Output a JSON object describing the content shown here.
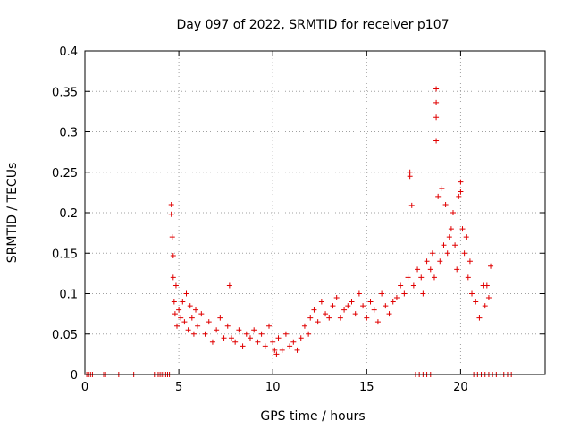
{
  "chart_data": {
    "type": "scatter",
    "title": "Day 097 of 2022, SRMTID for receiver p107",
    "xlabel": "GPS time / hours",
    "ylabel": "SRMTID / TECUs",
    "xlim": [
      0,
      24.5
    ],
    "ylim": [
      0,
      0.4
    ],
    "xticks": [
      0,
      5,
      10,
      15,
      20
    ],
    "xtick_labels": [
      "0",
      "5",
      "10",
      "15",
      "20"
    ],
    "yticks": [
      0,
      0.05,
      0.1,
      0.15,
      0.2,
      0.25,
      0.3,
      0.35,
      0.4
    ],
    "ytick_labels": [
      "0",
      "0.05",
      "0.1",
      "0.15",
      "0.2",
      "0.25",
      "0.3",
      "0.35",
      "0.4"
    ],
    "grid": true,
    "marker": "plus",
    "series": [
      {
        "name": "SRMTID",
        "color": "#e00000",
        "x": [
          0.1,
          0.2,
          0.3,
          0.4,
          1.0,
          1.1,
          1.8,
          2.6,
          3.7,
          3.9,
          4.0,
          4.1,
          4.2,
          4.3,
          4.4,
          4.5,
          4.6,
          4.6,
          4.65,
          4.7,
          4.7,
          4.75,
          4.8,
          4.85,
          4.9,
          5.0,
          5.1,
          5.2,
          5.3,
          5.4,
          5.5,
          5.6,
          5.7,
          5.8,
          5.9,
          6.0,
          6.2,
          6.4,
          6.6,
          6.8,
          7.0,
          7.2,
          7.4,
          7.6,
          7.7,
          7.8,
          8.0,
          8.2,
          8.4,
          8.6,
          8.8,
          9.0,
          9.2,
          9.4,
          9.6,
          9.8,
          10.0,
          10.1,
          10.2,
          10.3,
          10.5,
          10.7,
          10.9,
          11.1,
          11.3,
          11.5,
          11.7,
          11.9,
          12.0,
          12.2,
          12.4,
          12.6,
          12.8,
          13.0,
          13.2,
          13.4,
          13.6,
          13.8,
          14.0,
          14.2,
          14.4,
          14.6,
          14.8,
          15.0,
          15.2,
          15.4,
          15.6,
          15.8,
          16.0,
          16.2,
          16.4,
          16.6,
          16.8,
          17.0,
          17.2,
          17.3,
          17.3,
          17.4,
          17.5,
          17.7,
          17.9,
          18.0,
          18.2,
          18.4,
          18.5,
          18.6,
          18.7,
          18.7,
          18.7,
          18.7,
          18.8,
          18.9,
          19.0,
          19.1,
          19.2,
          19.3,
          19.4,
          19.5,
          19.6,
          19.7,
          19.8,
          19.9,
          20.0,
          20.0,
          20.1,
          20.2,
          20.3,
          20.4,
          20.5,
          20.6,
          17.6,
          17.8,
          18.0,
          18.2,
          18.4,
          20.8,
          21.0,
          21.2,
          21.3,
          21.4,
          21.5,
          21.6,
          20.7,
          20.9,
          21.1,
          21.3,
          21.5,
          21.7,
          21.9,
          22.1,
          22.3,
          22.5,
          22.7
        ],
        "y": [
          0,
          0,
          0,
          0,
          0,
          0,
          0,
          0,
          0,
          0,
          0,
          0,
          0,
          0,
          0,
          0,
          0.21,
          0.198,
          0.17,
          0.147,
          0.12,
          0.09,
          0.075,
          0.11,
          0.06,
          0.08,
          0.07,
          0.09,
          0.065,
          0.1,
          0.055,
          0.085,
          0.07,
          0.05,
          0.08,
          0.06,
          0.075,
          0.05,
          0.065,
          0.04,
          0.055,
          0.07,
          0.045,
          0.06,
          0.11,
          0.045,
          0.04,
          0.055,
          0.035,
          0.05,
          0.045,
          0.055,
          0.04,
          0.05,
          0.035,
          0.06,
          0.04,
          0.03,
          0.025,
          0.045,
          0.03,
          0.05,
          0.035,
          0.04,
          0.03,
          0.045,
          0.06,
          0.05,
          0.07,
          0.08,
          0.065,
          0.09,
          0.075,
          0.07,
          0.085,
          0.095,
          0.07,
          0.08,
          0.085,
          0.09,
          0.075,
          0.1,
          0.085,
          0.07,
          0.09,
          0.08,
          0.065,
          0.1,
          0.085,
          0.075,
          0.09,
          0.095,
          0.11,
          0.1,
          0.12,
          0.25,
          0.245,
          0.209,
          0.11,
          0.13,
          0.12,
          0.1,
          0.14,
          0.13,
          0.15,
          0.12,
          0.353,
          0.336,
          0.318,
          0.289,
          0.22,
          0.14,
          0.23,
          0.16,
          0.21,
          0.15,
          0.17,
          0.18,
          0.2,
          0.16,
          0.13,
          0.22,
          0.238,
          0.226,
          0.18,
          0.15,
          0.17,
          0.12,
          0.14,
          0.1,
          0,
          0,
          0,
          0,
          0,
          0.09,
          0.07,
          0.11,
          0.085,
          0.11,
          0.095,
          0.134,
          0,
          0,
          0,
          0,
          0,
          0,
          0,
          0,
          0,
          0,
          0
        ]
      }
    ]
  }
}
